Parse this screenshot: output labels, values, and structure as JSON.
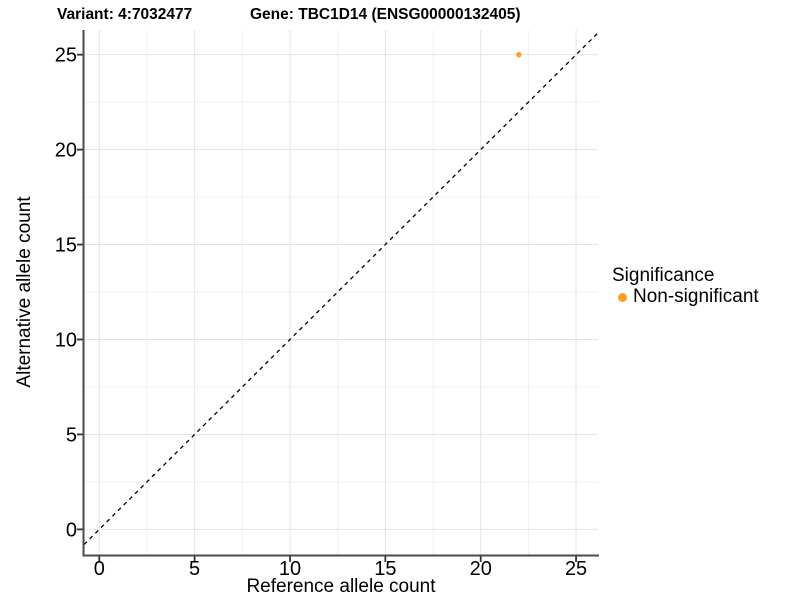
{
  "chart_data": {
    "type": "scatter",
    "title_left": "Variant: 4:7032477",
    "title_right": "Gene: TBC1D14 (ENSG00000132405)",
    "xlabel": "Reference allele count",
    "ylabel": "Alternative allele count",
    "xlim": [
      -0.8,
      26.15
    ],
    "ylim": [
      -1.35,
      26.3
    ],
    "x_ticks": [
      0,
      5,
      10,
      15,
      20,
      25
    ],
    "y_ticks": [
      0,
      5,
      10,
      15,
      20,
      25
    ],
    "x_minor_ticks": [
      2.5,
      7.5,
      12.5,
      17.5,
      22.5
    ],
    "y_minor_ticks": [
      2.5,
      7.5,
      12.5,
      17.5,
      22.5
    ],
    "grid": true,
    "legend_position": "right",
    "series": [
      {
        "name": "Non-significant",
        "color": "#FAA21E",
        "points": [
          {
            "x": 22,
            "y": 25
          }
        ]
      }
    ],
    "identity_line": {
      "slope": 1,
      "intercept": 0,
      "style": "dashed",
      "color": "#000000"
    },
    "legend": {
      "title": "Significance",
      "items": [
        {
          "label": "Non-significant",
          "color": "#FAA21E"
        }
      ]
    }
  },
  "styles": {
    "background": "#FFFFFF",
    "grid_major_color": "#E4E4E4",
    "grid_minor_color": "#F0F0F0",
    "axis_line_color": "#4A4A4A",
    "tick_color": "#333333",
    "text_color": "#000000",
    "point_color": "#FAA21E"
  }
}
